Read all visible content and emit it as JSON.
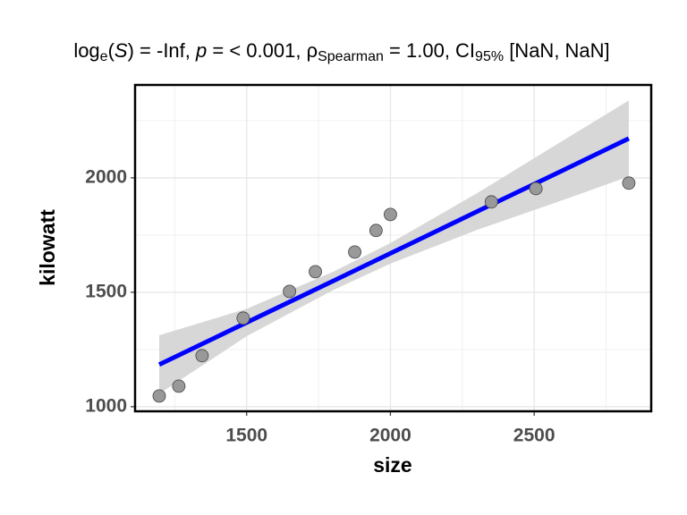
{
  "chart_data": {
    "type": "scatter",
    "title_parts": [
      {
        "text": "log",
        "style": "normal"
      },
      {
        "text": "e",
        "style": "sub"
      },
      {
        "text": "(",
        "style": "normal"
      },
      {
        "text": "S",
        "style": "italic"
      },
      {
        "text": ") = -Inf, ",
        "style": "normal"
      },
      {
        "text": "p",
        "style": "italic"
      },
      {
        "text": " = < 0.001, ρ",
        "style": "normal"
      },
      {
        "text": "Spearman",
        "style": "sub"
      },
      {
        "text": " = 1.00, CI",
        "style": "normal"
      },
      {
        "text": "95%",
        "style": "sub"
      },
      {
        "text": " [NaN, NaN]",
        "style": "normal"
      }
    ],
    "xlabel": "size",
    "ylabel": "kilowatt",
    "x": [
      1196,
      1264,
      1345,
      1488,
      1649,
      1739,
      1876,
      1950,
      2000,
      2351,
      2506,
      2829
    ],
    "values": [
      1047,
      1090,
      1223,
      1387,
      1504,
      1590,
      1676,
      1770,
      1840,
      1895,
      1953,
      1977
    ],
    "point_color": "#999999",
    "fit": {
      "color": "#0000ff",
      "band_color": "#d3d3d3",
      "x": [
        1196,
        1500,
        1800,
        2000,
        2300,
        2600,
        2829
      ],
      "values": [
        1184,
        1368,
        1549,
        1670,
        1852,
        2033,
        2172
      ],
      "lower": [
        1056,
        1308,
        1509,
        1625,
        1772,
        1903,
        2006
      ],
      "upper": [
        1312,
        1428,
        1589,
        1715,
        1932,
        2163,
        2338
      ]
    },
    "xlim": [
      1112,
      2907
    ],
    "ylim": [
      980,
      2406
    ],
    "xticks": [
      1500,
      2000,
      2500
    ],
    "yticks": [
      1000,
      1500,
      2000
    ],
    "xminor": [
      1250,
      1750,
      2250,
      2750
    ],
    "yminor": [
      1250,
      1750,
      2250
    ],
    "grid": true
  }
}
